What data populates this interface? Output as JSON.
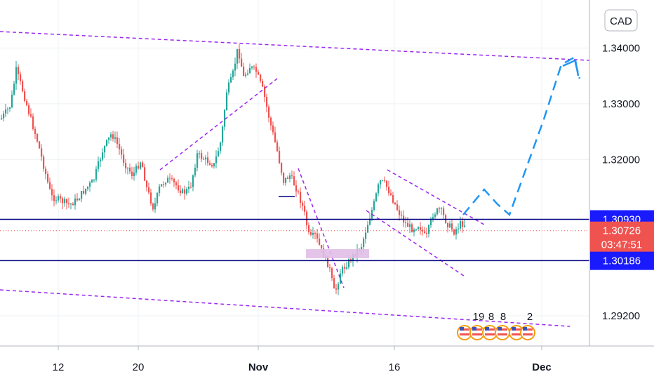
{
  "chart_data": {
    "type": "candlestick",
    "currency": "CAD",
    "y_ticks": [
      "1.34000",
      "1.33000",
      "1.32000",
      "1.29200"
    ],
    "x_ticks": [
      "12",
      "20",
      "Nov",
      "16",
      "Dec"
    ],
    "ylim": [
      1.2866,
      1.3486
    ],
    "price_tags": [
      {
        "text": "1.30930",
        "price": 1.3093,
        "kind": "level",
        "color": "#1a1aff"
      },
      {
        "text": "1.30726",
        "price": 1.30726,
        "kind": "last",
        "color": "#ef5350"
      },
      {
        "text": "03:47:51",
        "price": 1.3048,
        "kind": "timer",
        "color": "#ef5350"
      },
      {
        "text": "1.30186",
        "price": 1.30186,
        "kind": "level",
        "color": "#1a1aff"
      }
    ],
    "horizontal_levels": [
      1.3093,
      1.3019
    ],
    "last_price": 1.30726,
    "event_counts": [
      "19",
      "8",
      "8",
      "2"
    ],
    "colors": {
      "up": "#26a69a",
      "down": "#ef5350",
      "level": "#000080",
      "trend": "#9c27f0",
      "projection": "#2196f3",
      "zone": "#e1bee7"
    }
  }
}
